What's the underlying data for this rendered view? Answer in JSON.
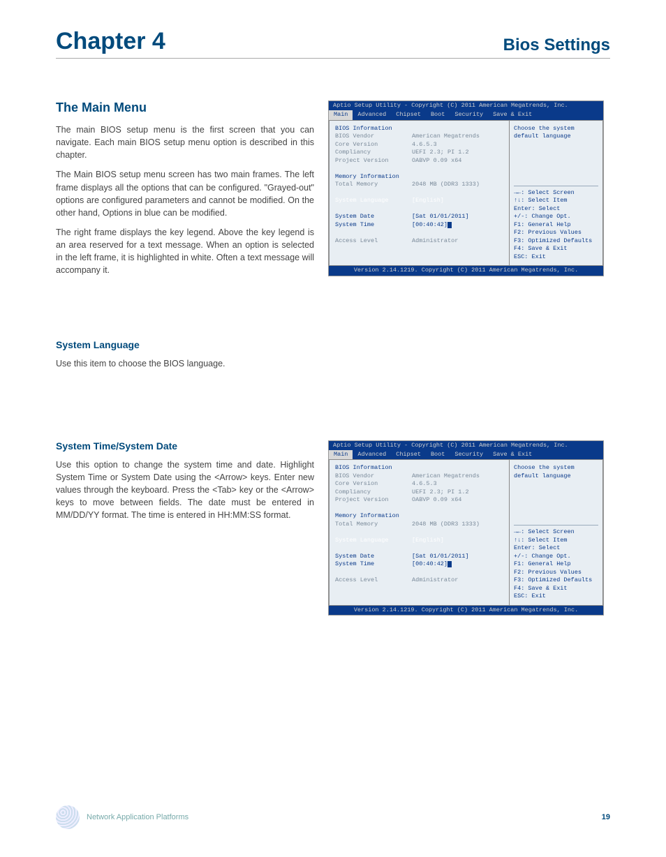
{
  "header": {
    "chapter": "Chapter 4",
    "subtitle": "Bios Settings"
  },
  "main_menu_section": {
    "heading": "The Main Menu",
    "paragraphs": [
      "The main BIOS setup menu is the first screen that you can navigate. Each main BIOS setup menu option is described in this chapter.",
      "The Main BIOS setup menu screen has two main frames. The left frame displays all the options that can be configured. \"Grayed-out\" options are configured parameters and cannot be modified. On the other hand, Options in blue can be modified.",
      "The right frame displays the key legend. Above the key legend is an area reserved for a text message. When an option is selected in the left frame, it is highlighted in white. Often a text message will accompany it."
    ]
  },
  "system_language_section": {
    "heading": "System Language",
    "paragraph": "Use this item to choose the BIOS language."
  },
  "system_time_section": {
    "heading": "System Time/System Date",
    "paragraph": "Use this option to change the system time and date. Highlight System Time or System Date using the <Arrow> keys. Enter new values through the keyboard. Press the <Tab> key or the <Arrow> keys to move between fields. The date must be entered in MM/DD/YY format. The time is entered in HH:MM:SS format."
  },
  "bios1": {
    "top": "Aptio Setup Utility - Copyright (C) 2011 American Megatrends, Inc.",
    "tabs": [
      "Main",
      "Advanced",
      "Chipset",
      "Boot",
      "Security",
      "Save & Exit"
    ],
    "active_tab": 0,
    "highlighted_row_index": 8,
    "left_rows": [
      {
        "label": "BIOS Information",
        "value": "",
        "style": "navy"
      },
      {
        "label": "BIOS Vendor",
        "value": "American Megatrends",
        "style": "gray"
      },
      {
        "label": "Core Version",
        "value": "4.6.5.3",
        "style": "gray"
      },
      {
        "label": "Compliancy",
        "value": "UEFI 2.3; PI 1.2",
        "style": "gray"
      },
      {
        "label": "Project Version",
        "value": "OABVP 0.09 x64",
        "style": "gray"
      },
      {
        "label": "",
        "value": "",
        "style": ""
      },
      {
        "label": "Memory Information",
        "value": "",
        "style": "navy"
      },
      {
        "label": "Total Memory",
        "value": "2048 MB (DDR3 1333)",
        "style": "gray"
      },
      {
        "label": "",
        "value": "",
        "style": ""
      },
      {
        "label": "System Language",
        "value": "[English]",
        "style": "white"
      },
      {
        "label": "",
        "value": "",
        "style": ""
      },
      {
        "label": "System Date",
        "value": "[Sat 01/01/2011]",
        "style": "navy"
      },
      {
        "label": "System Time",
        "value": "[00:40:42]",
        "style": "navy",
        "cursor": true
      },
      {
        "label": "",
        "value": "",
        "style": ""
      },
      {
        "label": "Access Level",
        "value": "Administrator",
        "style": "gray"
      }
    ],
    "help_top": [
      "Choose the system",
      "default language"
    ],
    "help_keys": [
      "→←: Select Screen",
      "↑↓: Select Item",
      "Enter: Select",
      "+/-: Change Opt.",
      "F1: General Help",
      "F2: Previous Values",
      "F3: Optimized Defaults",
      "F4: Save & Exit",
      "ESC: Exit"
    ],
    "bottom": "Version 2.14.1219. Copyright (C) 2011 American Megatrends, Inc."
  },
  "bios2": {
    "top": "Aptio Setup Utility - Copyright (C) 2011 American Megatrends, Inc.",
    "tabs": [
      "Main",
      "Advanced",
      "Chipset",
      "Boot",
      "Security",
      "Save & Exit"
    ],
    "active_tab": 0,
    "highlighted_row_index": 8,
    "left_rows": [
      {
        "label": "BIOS Information",
        "value": "",
        "style": "navy"
      },
      {
        "label": "BIOS Vendor",
        "value": "American Megatrends",
        "style": "gray"
      },
      {
        "label": "Core Version",
        "value": "4.6.5.3",
        "style": "gray"
      },
      {
        "label": "Compliancy",
        "value": "UEFI 2.3; PI 1.2",
        "style": "gray"
      },
      {
        "label": "Project Version",
        "value": "OABVP 0.09 x64",
        "style": "gray"
      },
      {
        "label": "",
        "value": "",
        "style": ""
      },
      {
        "label": "Memory Information",
        "value": "",
        "style": "navy"
      },
      {
        "label": "Total Memory",
        "value": "2048 MB (DDR3 1333)",
        "style": "gray"
      },
      {
        "label": "",
        "value": "",
        "style": ""
      },
      {
        "label": "System Language",
        "value": "[English]",
        "style": "white"
      },
      {
        "label": "",
        "value": "",
        "style": ""
      },
      {
        "label": "System Date",
        "value": "[Sat 01/01/2011]",
        "style": "navy"
      },
      {
        "label": "System Time",
        "value": "[00:40:42]",
        "style": "navy",
        "cursor": true
      },
      {
        "label": "",
        "value": "",
        "style": ""
      },
      {
        "label": "Access Level",
        "value": "Administrator",
        "style": "gray"
      }
    ],
    "help_top": [
      "Choose the system",
      "default language"
    ],
    "help_keys": [
      "→←: Select Screen",
      "↑↓: Select Item",
      "Enter: Select",
      "+/-: Change Opt.",
      "F1: General Help",
      "F2: Previous Values",
      "F3: Optimized Defaults",
      "F4: Save & Exit",
      "ESC: Exit"
    ],
    "bottom": "Version 2.14.1219. Copyright (C) 2011 American Megatrends, Inc."
  },
  "footer": {
    "text": "Network Application Platforms",
    "page": "19"
  },
  "colors": {
    "heading": "#004a7c",
    "bios_bg": "#0a3a8a",
    "bios_panel": "#e8eef3",
    "bios_gray": "#7a8a9a"
  }
}
